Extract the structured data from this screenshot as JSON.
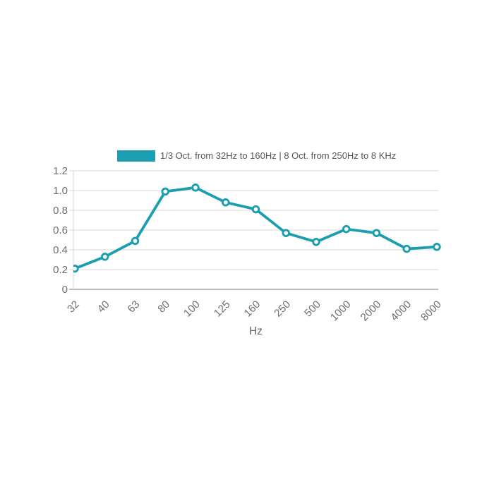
{
  "legend": {
    "label": "1/3 Oct. from 32Hz to 160Hz | 8 Oct. from 250Hz to 8 KHz",
    "swatch_color": "#1B9EB0"
  },
  "chart_data": {
    "type": "line",
    "title": "",
    "xlabel": "Hz",
    "ylabel": "",
    "categories": [
      "32",
      "40",
      "63",
      "80",
      "100",
      "125",
      "160",
      "250",
      "500",
      "1000",
      "2000",
      "4000",
      "8000"
    ],
    "series": [
      {
        "name": "1/3 Oct. from 32Hz to 160Hz | 8 Oct. from 250Hz to 8 KHz",
        "values": [
          0.21,
          0.33,
          0.49,
          0.99,
          1.03,
          0.88,
          0.81,
          0.57,
          0.48,
          0.61,
          0.57,
          0.41,
          0.43
        ],
        "color": "#1B9EB0",
        "marker": "open-circle"
      }
    ],
    "ylim": [
      0,
      1.2
    ],
    "yticks": [
      {
        "value": 1.2,
        "label": "1.2"
      },
      {
        "value": 1.0,
        "label": "1.0"
      },
      {
        "value": 0.8,
        "label": "0.8"
      },
      {
        "value": 0.6,
        "label": "0.6"
      },
      {
        "value": 0.4,
        "label": "0.4"
      },
      {
        "value": 0.2,
        "label": "0.2"
      },
      {
        "value": 0,
        "label": "0"
      }
    ],
    "grid": true,
    "legend_position": "top",
    "colors": {
      "grid_line": "#D8D8D8",
      "axis_line": "#A3A3A3",
      "tick_label": "#6E6E6E",
      "axis_title": "#666666",
      "legend_text": "#555555",
      "marker_fill": "#FFFFFF"
    }
  }
}
